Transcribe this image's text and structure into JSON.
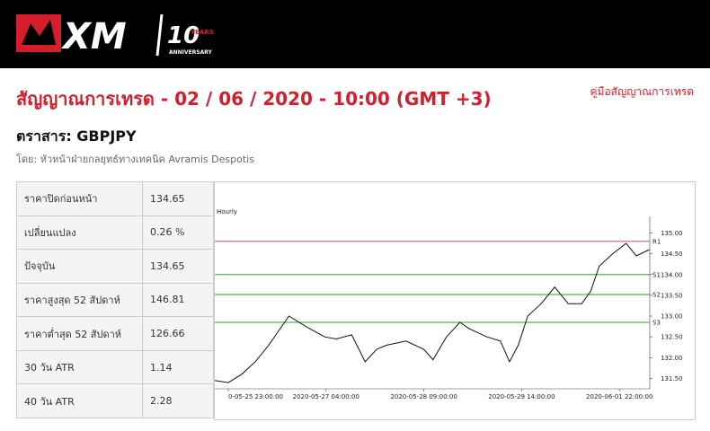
{
  "logo": {
    "brand": "XM",
    "number": "10",
    "years": "YEARS",
    "anniversary": "ANNIVERSARY"
  },
  "title": "สัญญาณการเทรด - 02 / 06 / 2020 - 10:00 (GMT +3)",
  "guide_link": "คู่มือสัญญาณการเทรด",
  "instrument": "ตราสาร: GBPJPY",
  "author": "โดย: หัวหน้าฝ่ายกลยุทธ์ทางเทคนิค Avramis Despotis",
  "table": {
    "rows": [
      [
        "ราคาปิดก่อนหน้า",
        "134.65"
      ],
      [
        "เปลี่ยนแปลง",
        "0.26 %"
      ],
      [
        "ปัจจุบัน",
        "134.65"
      ],
      [
        "ราคาสูงสุด 52 สัปดาห์",
        "146.81"
      ],
      [
        "ราคาต่ำสุด 52 สัปดาห์",
        "126.66"
      ],
      [
        "30 วัน ATR",
        "1.14"
      ],
      [
        "40 วัน ATR",
        "2.28"
      ]
    ]
  },
  "chart_data": {
    "type": "line",
    "title": "Hourly",
    "x": [
      -4,
      0,
      4,
      8,
      12,
      18,
      23,
      28.6,
      32,
      36.6,
      40.6,
      44,
      47,
      52.7,
      58,
      60.7,
      64.7,
      68.7,
      71.4,
      76.7,
      80.7,
      83.4,
      86,
      88.8,
      92.8,
      96.8,
      100.8,
      104.8,
      107.5,
      110,
      114,
      118,
      121,
      124.9
    ],
    "series": [
      {
        "color": "#111111",
        "values": [
          131.45,
          131.4,
          131.6,
          131.9,
          132.3,
          133.0,
          132.75,
          132.5,
          132.45,
          132.55,
          131.9,
          132.2,
          132.3,
          132.4,
          132.2,
          131.95,
          132.5,
          132.85,
          132.7,
          132.5,
          132.4,
          131.9,
          132.3,
          133.0,
          133.3,
          133.7,
          133.3,
          133.3,
          133.6,
          134.2,
          134.5,
          134.75,
          134.45,
          134.6
        ]
      }
    ],
    "levels": [
      {
        "name": "R1",
        "value": 134.8,
        "color": "#d05050"
      },
      {
        "name": "S1",
        "value": 134.0,
        "color": "#3a9a3a"
      },
      {
        "name": "S2",
        "value": 133.52,
        "color": "#3a9a3a"
      },
      {
        "name": "S3",
        "value": 132.85,
        "color": "#3a9a3a"
      }
    ],
    "xlim": [
      -4,
      125
    ],
    "xticks": [
      {
        "value": 0,
        "label": "0-05-25 23:00:00"
      },
      {
        "value": 29,
        "label": "2020-05-27 04:00:00"
      },
      {
        "value": 58,
        "label": "2020-05-28 09:00:00"
      },
      {
        "value": 87,
        "label": "2020-05-29 14:00:00"
      },
      {
        "value": 116,
        "label": "2020-06-01 22:00:00"
      }
    ],
    "ylim": [
      131.25,
      135.4
    ],
    "yticks": [
      {
        "value": 131.5,
        "label": "131.50"
      },
      {
        "value": 132,
        "label": "132.00"
      },
      {
        "value": 132.5,
        "label": "132.50"
      },
      {
        "value": 133,
        "label": "133.00"
      },
      {
        "value": 133.5,
        "label": "133.50"
      },
      {
        "value": 134,
        "label": "134.00"
      },
      {
        "value": 134.5,
        "label": "134.50"
      },
      {
        "value": 135,
        "label": "135.00"
      }
    ]
  }
}
